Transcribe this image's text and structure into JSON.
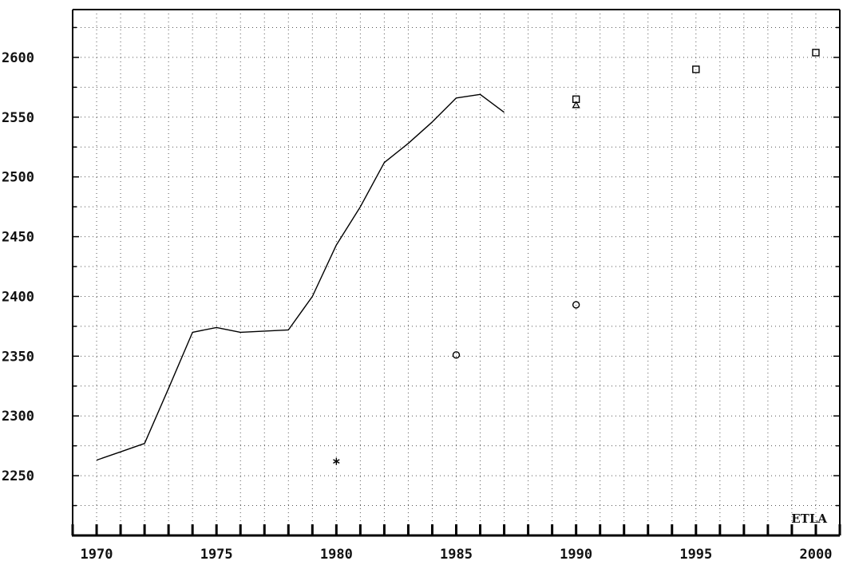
{
  "chart_data": {
    "type": "line",
    "title": "",
    "xlabel": "",
    "ylabel": "",
    "xlim": [
      1969,
      2001
    ],
    "ylim": [
      2200,
      2640
    ],
    "x_ticks": [
      1970,
      1975,
      1980,
      1985,
      1990,
      1995,
      2000
    ],
    "y_ticks": [
      2250,
      2300,
      2350,
      2400,
      2450,
      2500,
      2550,
      2600
    ],
    "grid": true,
    "watermark": "ETLA",
    "series": [
      {
        "kind": "line",
        "x": [
          1970,
          1971,
          1972,
          1973,
          1974,
          1975,
          1976,
          1977,
          1978,
          1979,
          1980,
          1981,
          1982,
          1983,
          1984,
          1985,
          1986,
          1987
        ],
        "y": [
          2263,
          2270,
          2277,
          2323,
          2370,
          2374,
          2370,
          2371,
          2372,
          2400,
          2443,
          2475,
          2512,
          2528,
          2546,
          2566,
          2569,
          2554
        ]
      },
      {
        "kind": "marker",
        "marker": "square",
        "x": [
          1990,
          1995,
          2000
        ],
        "y": [
          2565,
          2590,
          2604
        ]
      },
      {
        "kind": "marker",
        "marker": "triangle",
        "x": [
          1990
        ],
        "y": [
          2560
        ]
      },
      {
        "kind": "marker",
        "marker": "circle",
        "x": [
          1985,
          1990
        ],
        "y": [
          2351,
          2393
        ]
      },
      {
        "kind": "marker",
        "marker": "asterisk",
        "x": [
          1980
        ],
        "y": [
          2262
        ]
      }
    ]
  }
}
